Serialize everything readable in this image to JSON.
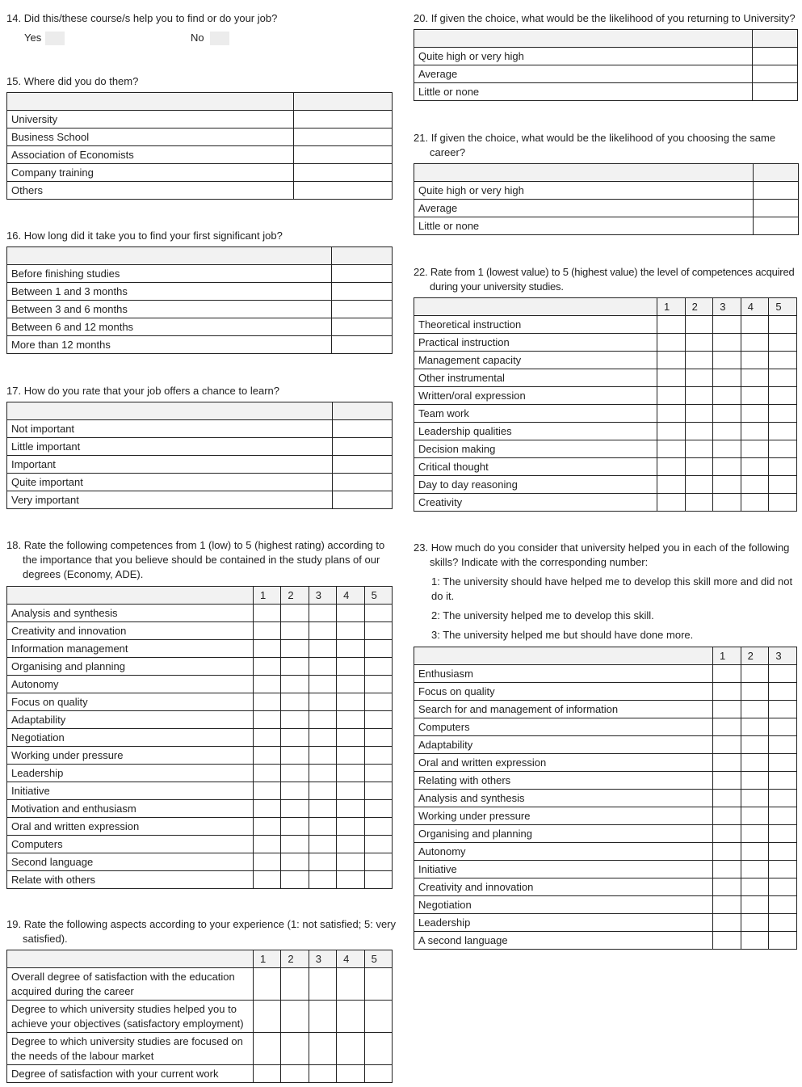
{
  "q14": {
    "number": "14.",
    "text": "Did this/these course/s help you to find or do your job?",
    "yes": "Yes",
    "no": "No"
  },
  "q15": {
    "number": "15.",
    "text": "Where did you do them?",
    "columns": [],
    "rows": [
      "University",
      "Business School",
      "Association of Economists",
      "Company training",
      "Others"
    ]
  },
  "q16": {
    "number": "16.",
    "text": "How long did it take you to find your first significant job?",
    "columns": [],
    "rows": [
      "Before finishing studies",
      "Between 1 and 3 months",
      "Between 3 and 6 months",
      "Between 6 and 12 months",
      "More than 12 months"
    ]
  },
  "q17": {
    "number": "17.",
    "text": "How do you rate that your job offers a chance to learn?",
    "columns": [],
    "rows": [
      "Not important",
      "Little important",
      "Important",
      "Quite  important",
      "Very important"
    ]
  },
  "q18": {
    "number": "18.",
    "text": "Rate the following competences from 1 (low) to 5 (highest rating) according to the importance that you believe should be contained in the study plans of our degrees (Economy, ADE).",
    "columns": [
      "1",
      "2",
      "3",
      "4",
      "5"
    ],
    "rows": [
      "Analysis and synthesis",
      "Creativity and innovation",
      "Information management",
      "Organising and planning",
      "Autonomy",
      "Focus on quality",
      "Adaptability",
      "Negotiation",
      "Working under pressure",
      "Leadership",
      "Initiative",
      "Motivation and enthusiasm",
      "Oral and written expression",
      "Computers",
      "Second language",
      "Relate with others"
    ]
  },
  "q19": {
    "number": "19.",
    "text": "Rate the following aspects according to your experience (1: not satisfied; 5: very satisfied).",
    "columns": [
      "1",
      "2",
      "3",
      "4",
      "5"
    ],
    "rows": [
      "Overall degree of satisfaction with the education acquired during the career",
      "Degree to which university studies helped you to achieve your objectives (satisfactory employment)",
      "Degree to which university studies are focused on the needs of the labour market",
      "Degree of satisfaction with your current work"
    ]
  },
  "q20": {
    "number": "20.",
    "text": "If given the choice, what would be the likelihood of you returning to University?",
    "columns": [],
    "rows": [
      "Quite high or very high",
      "Average",
      "Little or none"
    ]
  },
  "q21": {
    "number": "21.",
    "text": "If given the choice, what would be the likelihood of you choosing the same career?",
    "columns": [],
    "rows": [
      "Quite high or very high",
      "Average",
      "Little or none"
    ]
  },
  "q22": {
    "number": "22.",
    "text": "Rate from 1 (lowest value) to 5 (highest value) the level of competences acquired during your university studies.",
    "columns": [
      "1",
      "2",
      "3",
      "4",
      "5"
    ],
    "rows": [
      "Theoretical instruction",
      "Practical instruction",
      "Management capacity",
      "Other instrumental",
      "Written/oral expression",
      "Team work",
      "Leadership qualities",
      "Decision making",
      "Critical thought",
      "Day to day reasoning",
      "Creativity"
    ]
  },
  "q23": {
    "number": "23.",
    "text": "How much do you consider that university helped you in each of the following skills? Indicate with the corresponding number:",
    "notes": [
      "1: The university should have helped me to develop this skill more and did not do it.",
      "2: The university helped me to develop this skill.",
      "3: The university helped me but should have done more."
    ],
    "columns": [
      "1",
      "2",
      "3"
    ],
    "rows": [
      "Enthusiasm",
      "Focus on quality",
      "Search for and management of information",
      "Computers",
      "Adaptability",
      "Oral and written expression",
      "Relating with others",
      "Analysis and synthesis",
      "Working under pressure",
      "Organising and planning",
      "Autonomy",
      "Initiative",
      "Creativity and innovation",
      "Negotiation",
      "Leadership",
      "A second language"
    ]
  }
}
